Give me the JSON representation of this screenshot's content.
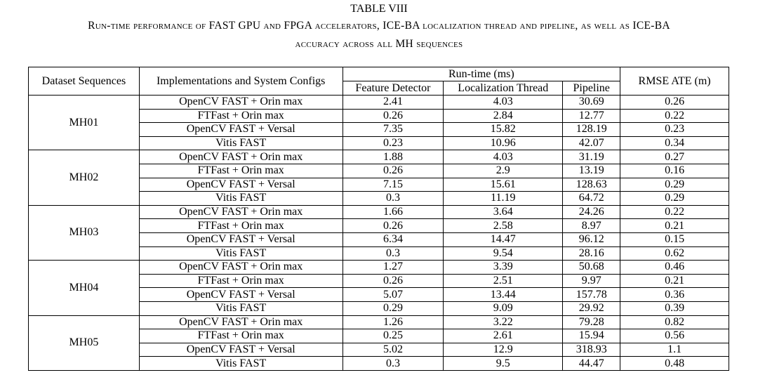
{
  "caption": {
    "title": "TABLE VIII",
    "line1": "Run-time performance of FAST GPU and FPGA accelerators, ICE-BA localization thread and pipeline, as well as ICE-BA",
    "line2": "accuracy across all MH sequences"
  },
  "table": {
    "headers": {
      "dataset": "Dataset Sequences",
      "impl": "Implementations and System Configs",
      "runtime": "Run-time (ms)",
      "feature_detector": "Feature Detector",
      "localization_thread": "Localization Thread",
      "pipeline": "Pipeline",
      "rmse": "RMSE ATE (m)"
    },
    "groups": [
      {
        "dataset": "MH01",
        "rows": [
          {
            "impl": "OpenCV FAST + Orin max",
            "fd": "2.41",
            "lt": "4.03",
            "pl": "30.69",
            "ate": "0.26"
          },
          {
            "impl": "FTFast + Orin max",
            "fd": "0.26",
            "lt": "2.84",
            "pl": "12.77",
            "ate": "0.22"
          },
          {
            "impl": "OpenCV FAST + Versal",
            "fd": "7.35",
            "lt": "15.82",
            "pl": "128.19",
            "ate": "0.23"
          },
          {
            "impl": "Vitis FAST",
            "fd": "0.23",
            "lt": "10.96",
            "pl": "42.07",
            "ate": "0.34"
          }
        ]
      },
      {
        "dataset": "MH02",
        "rows": [
          {
            "impl": "OpenCV FAST + Orin max",
            "fd": "1.88",
            "lt": "4.03",
            "pl": "31.19",
            "ate": "0.27"
          },
          {
            "impl": "FTFast + Orin max",
            "fd": "0.26",
            "lt": "2.9",
            "pl": "13.19",
            "ate": "0.16"
          },
          {
            "impl": "OpenCV FAST + Versal",
            "fd": "7.15",
            "lt": "15.61",
            "pl": "128.63",
            "ate": "0.29"
          },
          {
            "impl": "Vitis FAST",
            "fd": "0.3",
            "lt": "11.19",
            "pl": "64.72",
            "ate": "0.29"
          }
        ]
      },
      {
        "dataset": "MH03",
        "rows": [
          {
            "impl": "OpenCV FAST + Orin max",
            "fd": "1.66",
            "lt": "3.64",
            "pl": "24.26",
            "ate": "0.22"
          },
          {
            "impl": "FTFast + Orin max",
            "fd": "0.26",
            "lt": "2.58",
            "pl": "8.97",
            "ate": "0.21"
          },
          {
            "impl": "OpenCV FAST + Versal",
            "fd": "6.34",
            "lt": "14.47",
            "pl": "96.12",
            "ate": "0.15"
          },
          {
            "impl": "Vitis FAST",
            "fd": "0.3",
            "lt": "9.54",
            "pl": "28.16",
            "ate": "0.62"
          }
        ]
      },
      {
        "dataset": "MH04",
        "rows": [
          {
            "impl": "OpenCV FAST + Orin max",
            "fd": "1.27",
            "lt": "3.39",
            "pl": "50.68",
            "ate": "0.46"
          },
          {
            "impl": "FTFast + Orin max",
            "fd": "0.26",
            "lt": "2.51",
            "pl": "9.97",
            "ate": "0.21"
          },
          {
            "impl": "OpenCV FAST + Versal",
            "fd": "5.07",
            "lt": "13.44",
            "pl": "157.78",
            "ate": "0.36"
          },
          {
            "impl": "Vitis FAST",
            "fd": "0.29",
            "lt": "9.09",
            "pl": "29.92",
            "ate": "0.39"
          }
        ]
      },
      {
        "dataset": "MH05",
        "rows": [
          {
            "impl": "OpenCV FAST + Orin max",
            "fd": "1.26",
            "lt": "3.22",
            "pl": "79.28",
            "ate": "0.82"
          },
          {
            "impl": "FTFast + Orin max",
            "fd": "0.25",
            "lt": "2.61",
            "pl": "15.94",
            "ate": "0.56"
          },
          {
            "impl": "OpenCV FAST + Versal",
            "fd": "5.02",
            "lt": "12.9",
            "pl": "318.93",
            "ate": "1.1"
          },
          {
            "impl": "Vitis FAST",
            "fd": "0.3",
            "lt": "9.5",
            "pl": "44.47",
            "ate": "0.48"
          }
        ]
      }
    ]
  }
}
